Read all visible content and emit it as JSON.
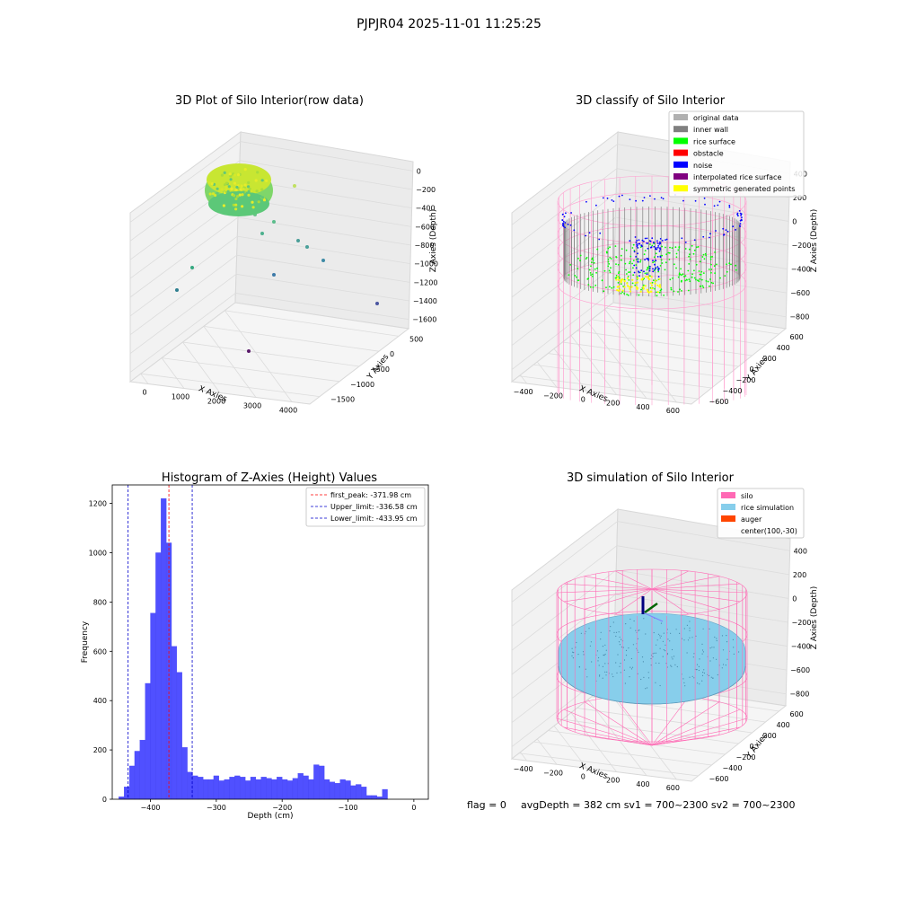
{
  "suptitle": "PJPJR04 2025-11-01 11:25:25",
  "footer": {
    "flag": "flag = 0",
    "avg": "avgDepth = 382 cm  sv1 = 700~2300  sv2 = 700~2300"
  },
  "colors": {
    "hist_bar": "#5050ff",
    "hist_edge": "#4040f0",
    "peak_line": "#ff0000",
    "limit_line": "#0000cc",
    "silo": "#ff69b4",
    "rice_sim": "#87ceeb",
    "auger": "#ff4500",
    "inner_wall": "#808080",
    "rice_surface": "#00ff00",
    "noise": "#0000ff",
    "symmetric": "#ffff00"
  },
  "chart_data": [
    {
      "type": "scatter3d",
      "title": "3D Plot of Silo Interior(row data)",
      "xlabel": "X Axies",
      "ylabel": "Y Axies",
      "zlabel": "Z Axies (Depth)",
      "xticks": [
        "0",
        "1000",
        "2000",
        "3000",
        "4000"
      ],
      "yticks": [
        "500",
        "0",
        "−500",
        "−1000",
        "−1500"
      ],
      "zticks": [
        "0",
        "−200",
        "−400",
        "−600",
        "−800",
        "−1000",
        "−1200",
        "−1400",
        "−1600"
      ]
    },
    {
      "type": "scatter3d",
      "title": "3D classify of Silo Interior",
      "xlabel": "X Axies",
      "ylabel": "Y Axies",
      "zlabel": "Z Axies (Depth)",
      "xticks": [
        "−400",
        "−200",
        "0",
        "200",
        "400",
        "600"
      ],
      "yticks": [
        "600",
        "400",
        "200",
        "0",
        "−200",
        "−400",
        "−600"
      ],
      "zticks": [
        "400",
        "200",
        "0",
        "−200",
        "−400",
        "−600",
        "−800"
      ],
      "legend": [
        {
          "label": "original data",
          "color": "#b0b0b0"
        },
        {
          "label": "inner wall",
          "color": "#808080"
        },
        {
          "label": "rice surface",
          "color": "#00ff00"
        },
        {
          "label": "obstacle",
          "color": "#ff0000"
        },
        {
          "label": "noise",
          "color": "#0000ff"
        },
        {
          "label": "interpolated rice surface",
          "color": "#800080"
        },
        {
          "label": "symmetric generated points",
          "color": "#ffff00"
        }
      ],
      "legend_position": "top-right"
    },
    {
      "type": "bar",
      "title": "Histogram of Z-Axies (Height) Values",
      "xlabel": "Depth (cm)",
      "ylabel": "Frequency",
      "xlim": [
        -458,
        22
      ],
      "ylim": [
        0,
        1275
      ],
      "bin_start": -448,
      "bin_width": 8,
      "values": [
        10,
        50,
        135,
        195,
        240,
        470,
        755,
        1000,
        1220,
        1040,
        620,
        515,
        210,
        110,
        95,
        90,
        80,
        80,
        95,
        75,
        80,
        90,
        95,
        90,
        75,
        90,
        80,
        90,
        85,
        80,
        90,
        80,
        75,
        85,
        105,
        95,
        80,
        140,
        135,
        80,
        70,
        65,
        80,
        75,
        55,
        60,
        50,
        15,
        15,
        10,
        40
      ],
      "xticks": [
        -400,
        -300,
        -200,
        -100,
        0
      ],
      "xtick_labels": [
        "−400",
        "−300",
        "−200",
        "−100",
        "0"
      ],
      "yticks": [
        0,
        200,
        400,
        600,
        800,
        1000,
        1200
      ],
      "ytick_labels": [
        "0",
        "200",
        "400",
        "600",
        "800",
        "1000",
        "1200"
      ],
      "vlines": [
        {
          "value": -371.98,
          "label": "first_peak: -371.98 cm",
          "color": "#ff0000"
        },
        {
          "value": -336.58,
          "label": "Upper_limit: -336.58 cm",
          "color": "#0000cc"
        },
        {
          "value": -433.95,
          "label": "Lower_limit: -433.95 cm",
          "color": "#0000cc"
        }
      ],
      "legend_position": "top-right"
    },
    {
      "type": "scatter3d",
      "title": "3D simulation of Silo Interior",
      "xlabel": "X Axies",
      "ylabel": "Y Axies",
      "zlabel": "Z Axies (Depth)",
      "xticks": [
        "−400",
        "−200",
        "0",
        "200",
        "400",
        "600"
      ],
      "yticks": [
        "600",
        "400",
        "200",
        "0",
        "−200",
        "−400",
        "−600"
      ],
      "zticks": [
        "400",
        "200",
        "0",
        "−200",
        "−400",
        "−600",
        "−800"
      ],
      "legend": [
        {
          "label": "silo",
          "color": "#ff69b4"
        },
        {
          "label": "rice simulation",
          "color": "#87ceeb"
        },
        {
          "label": "auger",
          "color": "#ff4500"
        },
        {
          "label": "center(100,-30)",
          "color": ""
        }
      ],
      "legend_position": "top-right"
    }
  ]
}
